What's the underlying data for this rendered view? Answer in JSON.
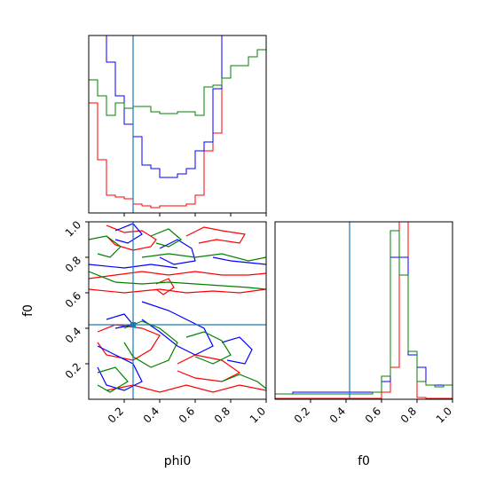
{
  "chart_data": {
    "type": "corner",
    "parameters": [
      "phi0",
      "f0"
    ],
    "truth": {
      "phi0": 0.25,
      "f0": 0.42
    },
    "truth_color": "#1f77b4",
    "series_colors": [
      "#ff0000",
      "#0000ff",
      "#008000"
    ],
    "axes": {
      "phi0_range": [
        0,
        1
      ],
      "f0_range": [
        0,
        1
      ],
      "phi0_ticks": [
        {
          "v": 0.2,
          "label": "0.2"
        },
        {
          "v": 0.4,
          "label": "0.4"
        },
        {
          "v": 0.6,
          "label": "0.6"
        },
        {
          "v": 0.8,
          "label": "0.8"
        },
        {
          "v": 1.0,
          "label": "1.0"
        }
      ],
      "f0_ticks": [
        {
          "v": 0.2,
          "label": "0.2"
        },
        {
          "v": 0.4,
          "label": "0.4"
        },
        {
          "v": 0.6,
          "label": "0.6"
        },
        {
          "v": 0.8,
          "label": "0.8"
        },
        {
          "v": 1.0,
          "label": "1.0"
        }
      ],
      "f0_y_ticks": [
        {
          "v": 0.2,
          "label": "0.2"
        },
        {
          "v": 0.4,
          "label": "0.4"
        },
        {
          "v": 0.6,
          "label": "0.6"
        },
        {
          "v": 0.8,
          "label": "0.8"
        },
        {
          "v": 1.0,
          "label": "1.0"
        }
      ],
      "xlabel_phi0": "phi0",
      "xlabel_f0": "f0",
      "ylabel_f0": "f0"
    },
    "hist_phi0": {
      "bin_edges": [
        0.0,
        0.05,
        0.1,
        0.15,
        0.2,
        0.25,
        0.3,
        0.35,
        0.4,
        0.45,
        0.5,
        0.55,
        0.6,
        0.65,
        0.7,
        0.75,
        0.8,
        0.85,
        0.9,
        0.95,
        1.0
      ],
      "series": [
        [
          0.62,
          0.3,
          0.1,
          0.09,
          0.08,
          0.05,
          0.04,
          0.03,
          0.04,
          0.04,
          0.04,
          0.05,
          0.1,
          0.35,
          0.45,
          1.5,
          1.5,
          1.5,
          1.5,
          1.5
        ],
        [
          1.1,
          1.0,
          0.85,
          0.66,
          0.5,
          0.43,
          0.27,
          0.25,
          0.2,
          0.2,
          0.22,
          0.25,
          0.35,
          0.4,
          0.7,
          1.0,
          1.5,
          1.5,
          1.5,
          1.5
        ],
        [
          0.75,
          0.66,
          0.55,
          0.62,
          0.59,
          0.6,
          0.6,
          0.57,
          0.56,
          0.56,
          0.57,
          0.57,
          0.55,
          0.71,
          0.72,
          0.76,
          0.83,
          0.83,
          0.88,
          0.92
        ]
      ],
      "ymax": 1.0
    },
    "hist_f0": {
      "bin_edges": [
        0.0,
        0.05,
        0.1,
        0.15,
        0.2,
        0.25,
        0.3,
        0.35,
        0.4,
        0.45,
        0.5,
        0.55,
        0.6,
        0.65,
        0.7,
        0.75,
        0.8,
        0.85,
        0.9,
        0.95,
        1.0
      ],
      "series": [
        [
          0.005,
          0.005,
          0.005,
          0.005,
          0.005,
          0.005,
          0.005,
          0.005,
          0.005,
          0.005,
          0.005,
          0.005,
          0.04,
          0.18,
          1.2,
          0.25,
          0.01,
          0.005,
          0.005,
          0.005
        ],
        [
          0.03,
          0.03,
          0.04,
          0.04,
          0.04,
          0.04,
          0.04,
          0.04,
          0.04,
          0.04,
          0.04,
          0.04,
          0.1,
          0.8,
          0.8,
          0.25,
          0.18,
          0.08,
          0.08,
          0.08
        ],
        [
          0.03,
          0.03,
          0.03,
          0.03,
          0.03,
          0.03,
          0.03,
          0.03,
          0.03,
          0.03,
          0.03,
          0.04,
          0.13,
          0.95,
          0.7,
          0.27,
          0.1,
          0.08,
          0.07,
          0.08
        ]
      ],
      "ymax": 1.0
    },
    "contours": [
      [
        [
          [
            0.1,
            0.98
          ],
          [
            0.2,
            0.94
          ],
          [
            0.3,
            0.95
          ],
          [
            0.38,
            0.9
          ],
          [
            0.35,
            0.86
          ],
          [
            0.25,
            0.84
          ],
          [
            0.15,
            0.87
          ],
          [
            0.1,
            0.92
          ]
        ],
        [
          [
            0.55,
            0.92
          ],
          [
            0.65,
            0.97
          ],
          [
            0.75,
            0.95
          ],
          [
            0.88,
            0.93
          ],
          [
            0.85,
            0.88
          ],
          [
            0.72,
            0.9
          ],
          [
            0.62,
            0.88
          ]
        ],
        [
          [
            0.0,
            0.68
          ],
          [
            0.15,
            0.7
          ],
          [
            0.3,
            0.72
          ],
          [
            0.45,
            0.7
          ],
          [
            0.6,
            0.72
          ],
          [
            0.75,
            0.7
          ],
          [
            0.9,
            0.7
          ],
          [
            1.0,
            0.71
          ]
        ],
        [
          [
            0.0,
            0.62
          ],
          [
            0.2,
            0.6
          ],
          [
            0.4,
            0.62
          ],
          [
            0.55,
            0.6
          ],
          [
            0.7,
            0.61
          ],
          [
            0.85,
            0.6
          ],
          [
            1.0,
            0.62
          ]
        ],
        [
          [
            0.38,
            0.65
          ],
          [
            0.45,
            0.68
          ],
          [
            0.48,
            0.63
          ],
          [
            0.42,
            0.59
          ],
          [
            0.38,
            0.62
          ]
        ],
        [
          [
            0.05,
            0.38
          ],
          [
            0.15,
            0.42
          ],
          [
            0.3,
            0.4
          ],
          [
            0.4,
            0.36
          ],
          [
            0.35,
            0.28
          ],
          [
            0.25,
            0.22
          ],
          [
            0.1,
            0.25
          ],
          [
            0.05,
            0.32
          ]
        ],
        [
          [
            0.5,
            0.2
          ],
          [
            0.6,
            0.25
          ],
          [
            0.75,
            0.22
          ],
          [
            0.85,
            0.15
          ],
          [
            0.75,
            0.1
          ],
          [
            0.6,
            0.12
          ],
          [
            0.5,
            0.16
          ]
        ],
        [
          [
            0.1,
            0.05
          ],
          [
            0.25,
            0.08
          ],
          [
            0.4,
            0.04
          ],
          [
            0.55,
            0.08
          ],
          [
            0.7,
            0.04
          ],
          [
            0.85,
            0.08
          ],
          [
            1.0,
            0.05
          ]
        ]
      ],
      [
        [
          [
            0.15,
            0.95
          ],
          [
            0.25,
            0.99
          ],
          [
            0.3,
            0.93
          ],
          [
            0.22,
            0.88
          ],
          [
            0.15,
            0.9
          ]
        ],
        [
          [
            0.4,
            0.85
          ],
          [
            0.5,
            0.9
          ],
          [
            0.58,
            0.85
          ],
          [
            0.6,
            0.78
          ],
          [
            0.48,
            0.76
          ],
          [
            0.4,
            0.8
          ]
        ],
        [
          [
            0.7,
            0.8
          ],
          [
            0.8,
            0.78
          ],
          [
            0.9,
            0.77
          ],
          [
            1.0,
            0.76
          ]
        ],
        [
          [
            0.0,
            0.76
          ],
          [
            0.2,
            0.74
          ],
          [
            0.35,
            0.76
          ],
          [
            0.5,
            0.74
          ]
        ],
        [
          [
            0.3,
            0.55
          ],
          [
            0.45,
            0.5
          ],
          [
            0.55,
            0.45
          ],
          [
            0.65,
            0.4
          ],
          [
            0.7,
            0.3
          ],
          [
            0.6,
            0.25
          ],
          [
            0.5,
            0.3
          ],
          [
            0.4,
            0.38
          ],
          [
            0.3,
            0.45
          ]
        ],
        [
          [
            0.05,
            0.3
          ],
          [
            0.15,
            0.25
          ],
          [
            0.25,
            0.2
          ],
          [
            0.3,
            0.1
          ],
          [
            0.2,
            0.05
          ],
          [
            0.1,
            0.08
          ],
          [
            0.05,
            0.18
          ]
        ],
        [
          [
            0.75,
            0.32
          ],
          [
            0.85,
            0.35
          ],
          [
            0.92,
            0.28
          ],
          [
            0.88,
            0.2
          ],
          [
            0.78,
            0.22
          ]
        ],
        [
          [
            0.1,
            0.45
          ],
          [
            0.2,
            0.48
          ],
          [
            0.25,
            0.42
          ],
          [
            0.15,
            0.4
          ]
        ]
      ],
      [
        [
          [
            0.0,
            0.9
          ],
          [
            0.1,
            0.92
          ],
          [
            0.18,
            0.86
          ],
          [
            0.12,
            0.8
          ],
          [
            0.05,
            0.82
          ]
        ],
        [
          [
            0.3,
            0.8
          ],
          [
            0.45,
            0.82
          ],
          [
            0.6,
            0.8
          ],
          [
            0.75,
            0.82
          ],
          [
            0.9,
            0.78
          ],
          [
            1.0,
            0.8
          ]
        ],
        [
          [
            0.0,
            0.72
          ],
          [
            0.15,
            0.66
          ],
          [
            0.3,
            0.65
          ],
          [
            0.45,
            0.66
          ],
          [
            0.6,
            0.65
          ],
          [
            0.75,
            0.64
          ],
          [
            0.9,
            0.63
          ],
          [
            1.0,
            0.62
          ]
        ],
        [
          [
            0.35,
            0.92
          ],
          [
            0.45,
            0.96
          ],
          [
            0.52,
            0.9
          ],
          [
            0.45,
            0.86
          ],
          [
            0.38,
            0.88
          ]
        ],
        [
          [
            0.2,
            0.4
          ],
          [
            0.3,
            0.44
          ],
          [
            0.4,
            0.4
          ],
          [
            0.5,
            0.32
          ],
          [
            0.45,
            0.22
          ],
          [
            0.35,
            0.18
          ],
          [
            0.25,
            0.24
          ],
          [
            0.2,
            0.32
          ]
        ],
        [
          [
            0.55,
            0.35
          ],
          [
            0.65,
            0.38
          ],
          [
            0.75,
            0.33
          ],
          [
            0.8,
            0.25
          ],
          [
            0.7,
            0.2
          ],
          [
            0.6,
            0.24
          ]
        ],
        [
          [
            0.05,
            0.15
          ],
          [
            0.15,
            0.18
          ],
          [
            0.22,
            0.1
          ],
          [
            0.12,
            0.04
          ],
          [
            0.05,
            0.08
          ]
        ],
        [
          [
            0.75,
            0.1
          ],
          [
            0.85,
            0.14
          ],
          [
            0.95,
            0.1
          ],
          [
            1.0,
            0.06
          ]
        ]
      ]
    ]
  }
}
